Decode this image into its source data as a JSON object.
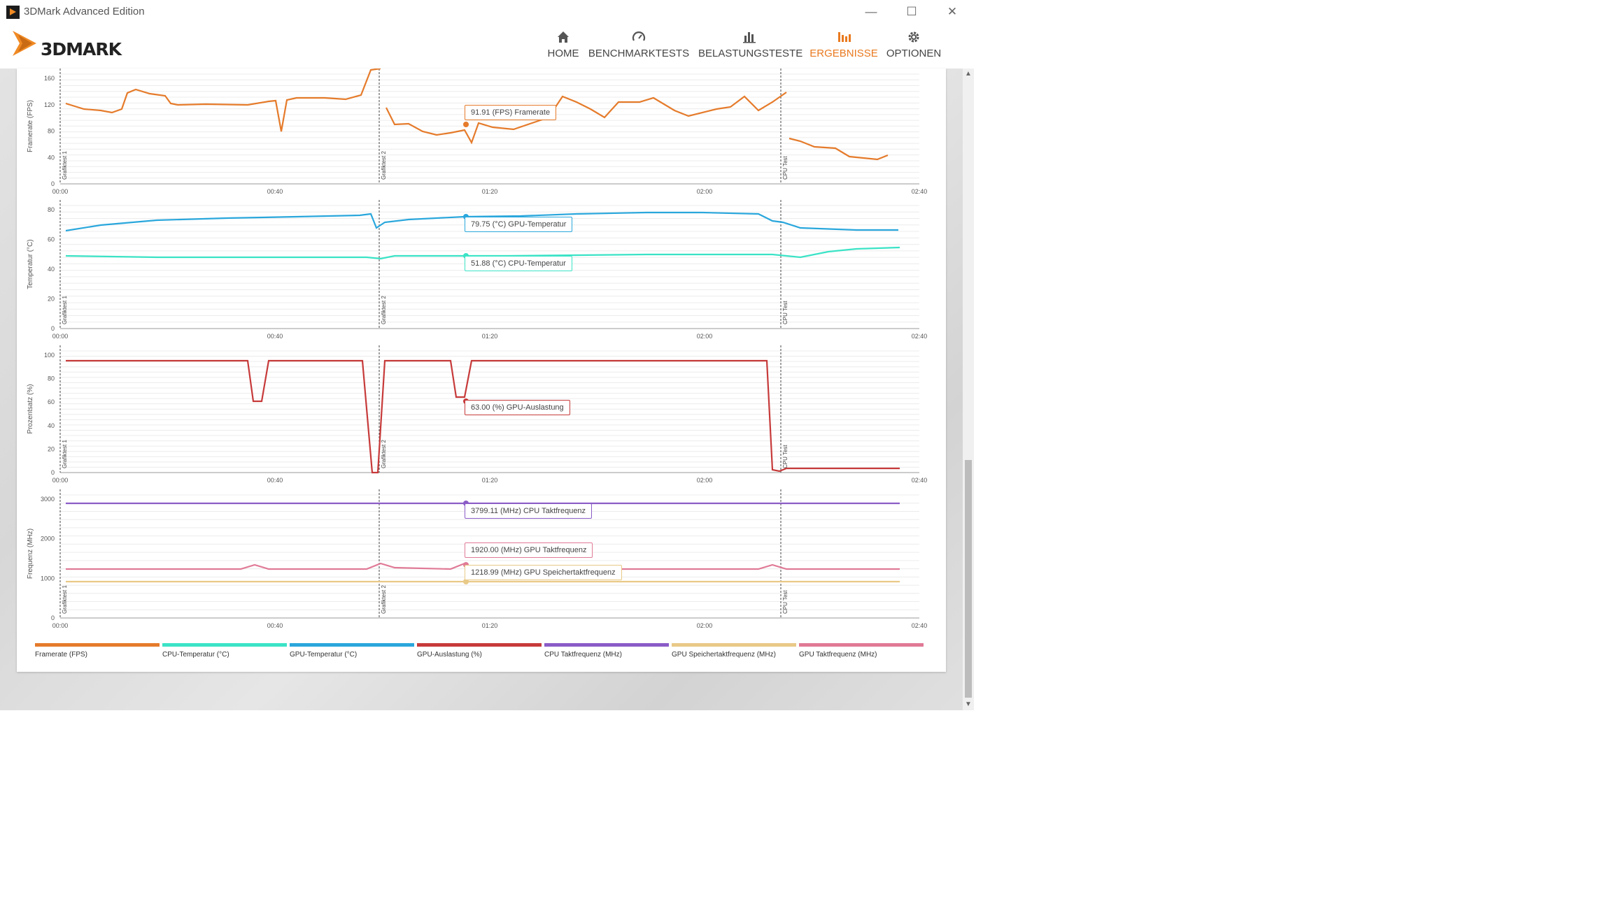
{
  "window": {
    "title": "3DMark Advanced Edition"
  },
  "logo": {
    "text": "3DMARK"
  },
  "nav": [
    {
      "label": "HOME",
      "icon": "home-icon",
      "active": false
    },
    {
      "label": "BENCHMARKTESTS",
      "icon": "gauge-icon",
      "active": false
    },
    {
      "label": "BELASTUNGSTESTE",
      "icon": "bar-chart-icon",
      "active": false
    },
    {
      "label": "ERGEBNISSE",
      "icon": "results-chart-icon",
      "active": true
    },
    {
      "label": "OPTIONEN",
      "icon": "gear-icon",
      "active": false
    }
  ],
  "colors": {
    "accent": "#e97a1f",
    "framerate": "#e57b2b",
    "cpu_temp": "#3be3c6",
    "gpu_temp": "#2aa7dc",
    "gpu_load": "#c73a3a",
    "cpu_clock": "#8b5cc7",
    "gpu_mem_clock": "#e8c987",
    "gpu_clock": "#e07a96"
  },
  "time_ticks": [
    "00:00",
    "00:40",
    "01:20",
    "02:00",
    "02:40"
  ],
  "markers": [
    "Grafiktest 1",
    "Grafiktest 2",
    "CPU Test"
  ],
  "charts": {
    "framerate": {
      "ylabel": "Framerate (FPS)",
      "yticks": [
        "0",
        "40",
        "80",
        "120",
        "160"
      ],
      "tooltip": "91.91 (FPS) Framerate"
    },
    "temperature": {
      "ylabel": "Temperatur (°C)",
      "yticks": [
        "0",
        "20",
        "40",
        "60",
        "80"
      ],
      "tooltip_gpu": "79.75 (°C) GPU-Temperatur",
      "tooltip_cpu": "51.88 (°C) CPU-Temperatur"
    },
    "percent": {
      "ylabel": "Prozentsatz (%)",
      "yticks": [
        "0",
        "20",
        "40",
        "60",
        "80",
        "100"
      ],
      "tooltip": "63.00 (%) GPU-Auslastung"
    },
    "frequency": {
      "ylabel": "Frequenz (MHz)",
      "yticks": [
        "0",
        "1000",
        "2000",
        "3000"
      ],
      "tooltip_cpu": "3799.11 (MHz) CPU Taktfrequenz",
      "tooltip_gpu": "1920.00 (MHz) GPU Taktfrequenz",
      "tooltip_mem": "1218.99 (MHz) GPU Speichertaktfrequenz"
    }
  },
  "legend": [
    {
      "label": "Framerate (FPS)",
      "color": "#e57b2b"
    },
    {
      "label": "CPU-Temperatur (°C)",
      "color": "#3be3c6"
    },
    {
      "label": "GPU-Temperatur (°C)",
      "color": "#2aa7dc"
    },
    {
      "label": "GPU-Auslastung (%)",
      "color": "#c73a3a"
    },
    {
      "label": "CPU Taktfrequenz (MHz)",
      "color": "#8b5cc7"
    },
    {
      "label": "GPU Speichertaktfrequenz (MHz)",
      "color": "#e8c987"
    },
    {
      "label": "GPU Taktfrequenz (MHz)",
      "color": "#e07a96"
    }
  ]
}
